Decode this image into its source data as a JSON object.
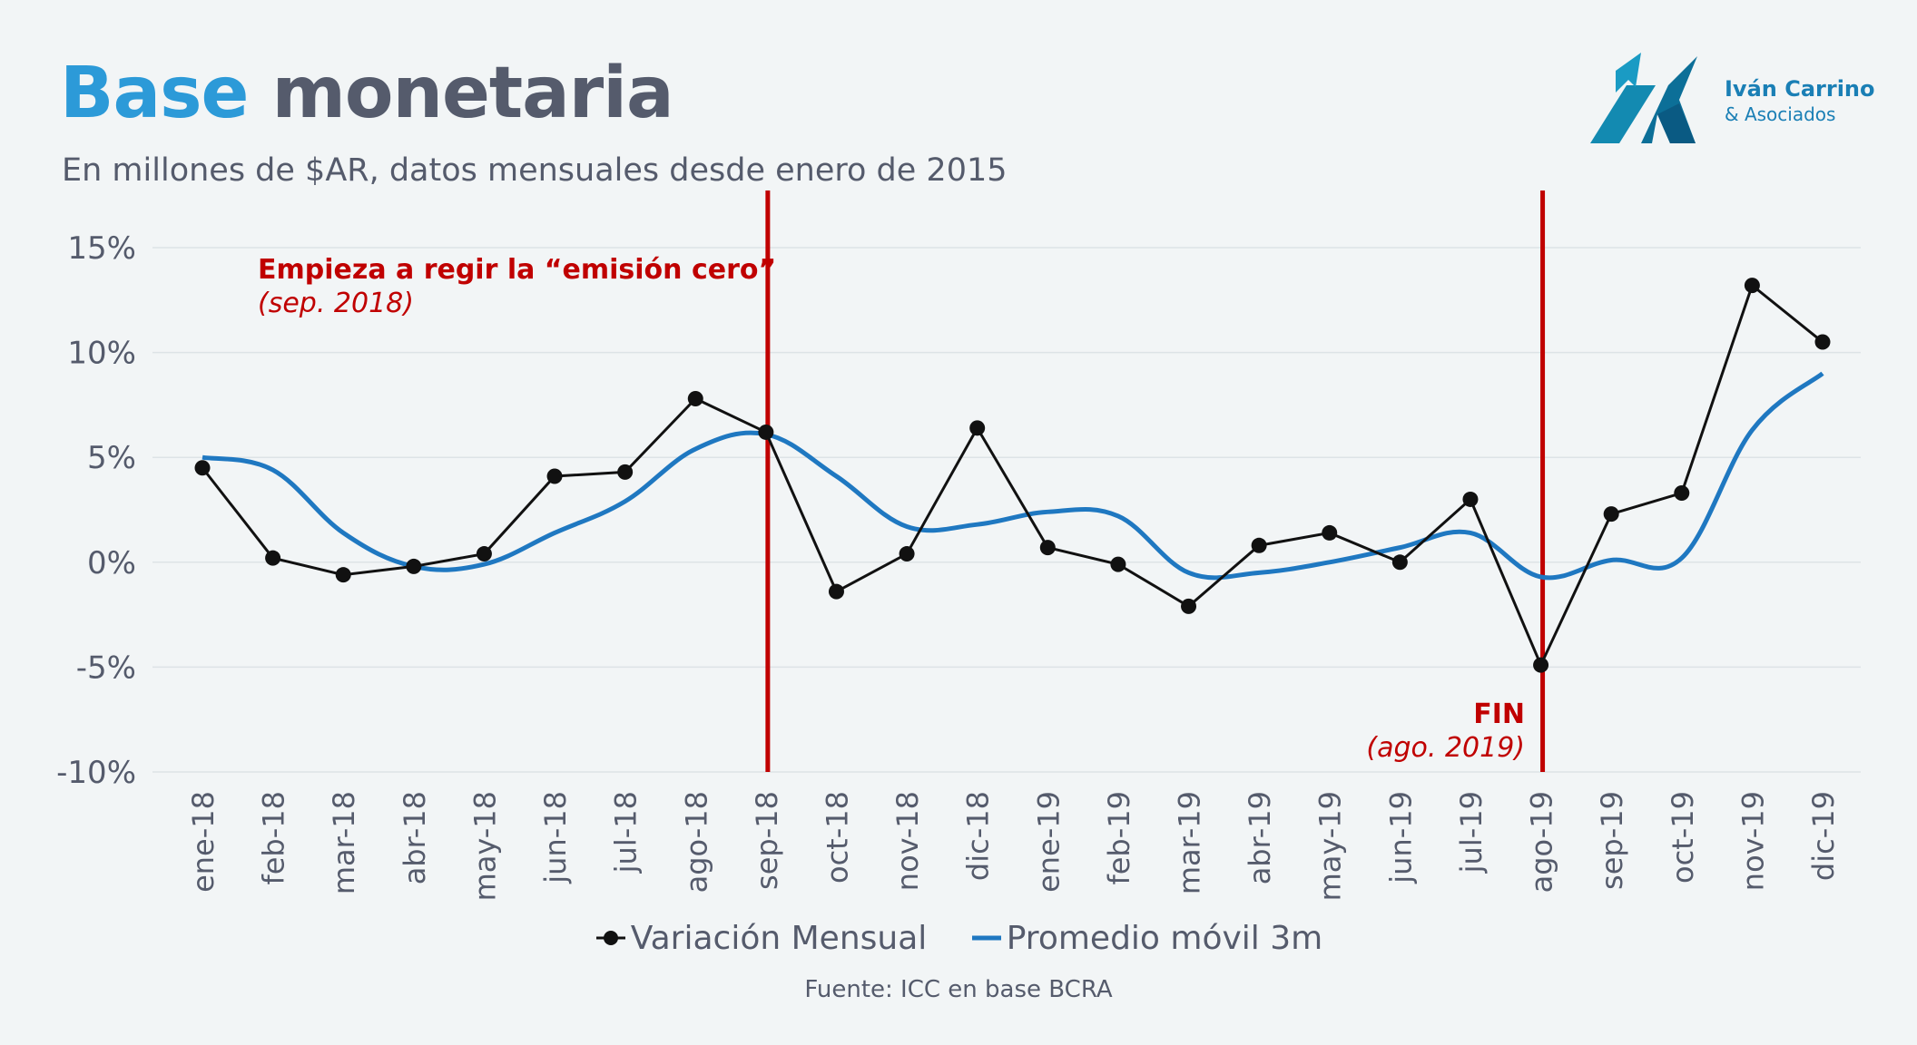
{
  "header": {
    "title_part1": "Base",
    "title_part2": "monetaria",
    "subtitle": "En millones de $AR, datos mensuales desde enero de 2015"
  },
  "logo": {
    "name": "Iván Carrino",
    "sub": "& Asociados"
  },
  "annotations": {
    "start_title": "Empieza a regir la “emisión cero”",
    "start_date": "(sep. 2018)",
    "end_title": "FIN",
    "end_date": "(ago. 2019)"
  },
  "legend": {
    "series1": "Variación Mensual",
    "series2": "Promedio móvil 3m"
  },
  "source": "Fuente: ICC en base BCRA",
  "colors": {
    "title_accent": "#2c9ad8",
    "title_main": "#555b6c",
    "series1": "#111111",
    "series2": "#1f78c1",
    "annotation": "#c00000",
    "grid": "#dde3e6"
  },
  "chart_data": {
    "type": "line",
    "categories": [
      "ene-18",
      "feb-18",
      "mar-18",
      "abr-18",
      "may-18",
      "jun-18",
      "jul-18",
      "ago-18",
      "sep-18",
      "oct-18",
      "nov-18",
      "dic-18",
      "ene-19",
      "feb-19",
      "mar-19",
      "abr-19",
      "may-19",
      "jun-19",
      "jul-19",
      "ago-19",
      "sep-19",
      "oct-19",
      "nov-19",
      "dic-19"
    ],
    "y_ticks": [
      "15%",
      "10%",
      "5%",
      "0%",
      "-5%",
      "-10%"
    ],
    "ylim": [
      -10,
      15
    ],
    "grid": true,
    "legend_position": "bottom",
    "vertical_lines": [
      "sep-18",
      "ago-19"
    ],
    "series": [
      {
        "name": "Variación Mensual",
        "markers": true,
        "values": [
          4.5,
          0.2,
          -0.6,
          -0.2,
          0.4,
          4.1,
          4.3,
          7.8,
          6.2,
          -1.4,
          0.4,
          6.4,
          0.7,
          -0.1,
          -2.1,
          0.8,
          1.4,
          0.0,
          3.0,
          -4.9,
          2.3,
          3.3,
          13.2,
          10.5
        ]
      },
      {
        "name": "Promedio móvil 3m",
        "markers": false,
        "values": [
          5.0,
          4.4,
          1.4,
          -0.2,
          -0.1,
          1.4,
          2.9,
          5.4,
          6.1,
          4.1,
          1.7,
          1.8,
          2.4,
          2.2,
          -0.5,
          -0.5,
          0.0,
          0.7,
          1.4,
          -0.7,
          0.1,
          0.2,
          6.3,
          9.0
        ]
      }
    ]
  }
}
